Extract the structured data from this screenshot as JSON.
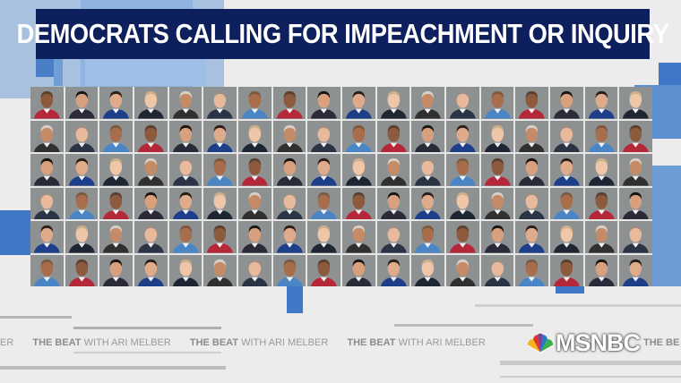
{
  "graphic": {
    "title": "DEMOCRATS CALLING FOR IMPEACHMENT OR INQUIRY",
    "title_bg_color": "#0d1f5c",
    "accent_color": "#4a7fc8"
  },
  "ticker": {
    "show_name_bold": "THE BEAT",
    "show_name_rest": "WITH ARI MELBER",
    "partial_left": "ER",
    "partial_right": "THE BE"
  },
  "network": {
    "logo_icon": "nbc-peacock-icon",
    "name": "MSNBC"
  }
}
